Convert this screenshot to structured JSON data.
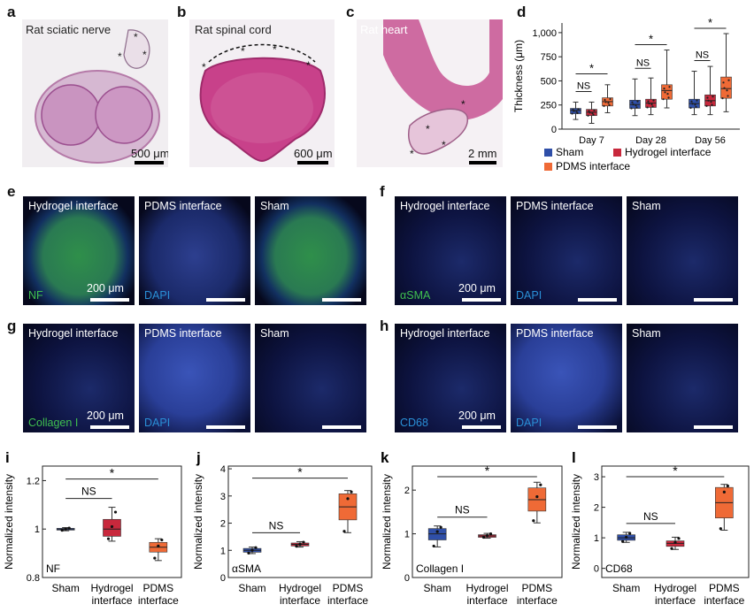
{
  "panels_top": {
    "a": {
      "letter": "a",
      "title": "Rat sciatic nerve",
      "scale": "500 μm"
    },
    "b": {
      "letter": "b",
      "title": "Rat spinal cord",
      "scale": "600 μm"
    },
    "c": {
      "letter": "c",
      "title": "Rat heart",
      "scale": "2 mm"
    }
  },
  "panel_d": {
    "letter": "d",
    "legend": [
      "Sham",
      "Hydrogel interface",
      "PDMS interface"
    ]
  },
  "panels_fluor": {
    "e": {
      "letter": "e",
      "labels": [
        "Hydrogel interface",
        "PDMS interface",
        "Sham"
      ],
      "stain1": "NF",
      "stain2": "DAPI",
      "scale": "200 μm"
    },
    "f": {
      "letter": "f",
      "labels": [
        "Hydrogel interface",
        "PDMS interface",
        "Sham"
      ],
      "stain1": "αSMA",
      "stain2": "DAPI",
      "scale": "200 μm"
    },
    "g": {
      "letter": "g",
      "labels": [
        "Hydrogel interface",
        "PDMS interface",
        "Sham"
      ],
      "stain1": "Collagen I",
      "stain2": "DAPI",
      "scale": "200 μm"
    },
    "h": {
      "letter": "h",
      "labels": [
        "Hydrogel interface",
        "PDMS interface",
        "Sham"
      ],
      "stain1": "CD68",
      "stain2": "DAPI",
      "scale": "200 μm"
    }
  },
  "bottom_letters": {
    "i": "i",
    "j": "j",
    "k": "k",
    "l": "l"
  },
  "colors": {
    "sham": "#2f4fa8",
    "hydrogel": "#c8283c",
    "pdms": "#ef6a36",
    "nf": "#3fbf4f",
    "dapi": "#2a8fd6"
  },
  "chart_data": [
    {
      "id": "d",
      "type": "box",
      "title": "",
      "ylabel": "Thickness (μm)",
      "ylim": [
        0,
        1100
      ],
      "yticks": [
        0,
        250,
        500,
        750,
        1000
      ],
      "ytick_labels": [
        "0",
        "250",
        "500",
        "750",
        "1,000"
      ],
      "categories": [
        "Day 7",
        "Day 28",
        "Day 56"
      ],
      "series": [
        {
          "name": "Sham",
          "boxes": [
            {
              "min": 100,
              "q1": 160,
              "median": 195,
              "q3": 215,
              "max": 280
            },
            {
              "min": 140,
              "q1": 215,
              "median": 255,
              "q3": 300,
              "max": 520
            },
            {
              "min": 150,
              "q1": 220,
              "median": 265,
              "q3": 310,
              "max": 600
            }
          ]
        },
        {
          "name": "Hydrogel interface",
          "boxes": [
            {
              "min": 60,
              "q1": 140,
              "median": 175,
              "q3": 205,
              "max": 280
            },
            {
              "min": 150,
              "q1": 225,
              "median": 270,
              "q3": 310,
              "max": 530
            },
            {
              "min": 150,
              "q1": 240,
              "median": 295,
              "q3": 355,
              "max": 650
            }
          ]
        },
        {
          "name": "PDMS interface",
          "boxes": [
            {
              "min": 170,
              "q1": 240,
              "median": 285,
              "q3": 325,
              "max": 460
            },
            {
              "min": 220,
              "q1": 310,
              "median": 400,
              "q3": 460,
              "max": 820
            },
            {
              "min": 180,
              "q1": 320,
              "median": 420,
              "q3": 540,
              "max": 990
            }
          ]
        }
      ],
      "annotations": {
        "ns": [
          "NS",
          "NS",
          "NS"
        ],
        "star": [
          "*",
          "*",
          "*"
        ]
      }
    },
    {
      "id": "i",
      "type": "box",
      "ylabel": "Normalized intensity",
      "ylim": [
        0.8,
        1.26
      ],
      "yticks": [
        0.8,
        1.0,
        1.2
      ],
      "ytick_labels": [
        "0.8",
        "1",
        "1.2"
      ],
      "categories": [
        "Sham",
        "Hydrogel interface",
        "PDMS interface"
      ],
      "cat_line1": [
        "Sham",
        "Hydrogel",
        "PDMS"
      ],
      "cat_line2": [
        "",
        "interface",
        "interface"
      ],
      "boxes": [
        {
          "min": 0.993,
          "q1": 0.997,
          "median": 1.0,
          "q3": 1.003,
          "max": 1.006,
          "points": [
            0.995,
            1.0,
            1.004
          ]
        },
        {
          "min": 0.95,
          "q1": 0.97,
          "median": 1.0,
          "q3": 1.04,
          "max": 1.09,
          "points": [
            0.96,
            1.01,
            1.07
          ]
        },
        {
          "min": 0.87,
          "q1": 0.905,
          "median": 0.925,
          "q3": 0.945,
          "max": 0.96,
          "points": [
            0.88,
            0.93,
            0.955
          ]
        }
      ],
      "stain": "NF",
      "annotations": {
        "ns": "NS",
        "star": "*"
      }
    },
    {
      "id": "j",
      "type": "box",
      "ylabel": "Normalized intensity",
      "ylim": [
        0,
        4.1
      ],
      "yticks": [
        0,
        1,
        2,
        3,
        4
      ],
      "ytick_labels": [
        "0",
        "1",
        "2",
        "3",
        "4"
      ],
      "categories": [
        "Sham",
        "Hydrogel interface",
        "PDMS interface"
      ],
      "cat_line1": [
        "Sham",
        "Hydrogel",
        "PDMS"
      ],
      "cat_line2": [
        "",
        "interface",
        "interface"
      ],
      "boxes": [
        {
          "min": 0.88,
          "q1": 0.93,
          "median": 1.0,
          "q3": 1.07,
          "max": 1.12,
          "points": [
            0.9,
            1.0,
            1.1
          ]
        },
        {
          "min": 1.12,
          "q1": 1.16,
          "median": 1.22,
          "q3": 1.27,
          "max": 1.32,
          "points": [
            1.15,
            1.22,
            1.3
          ]
        },
        {
          "min": 1.65,
          "q1": 2.12,
          "median": 2.6,
          "q3": 3.08,
          "max": 3.2,
          "points": [
            1.7,
            2.9,
            3.15
          ]
        }
      ],
      "stain": "αSMA",
      "annotations": {
        "ns": "NS",
        "star": "*"
      }
    },
    {
      "id": "k",
      "type": "box",
      "ylabel": "Normalized intensity",
      "ylim": [
        0,
        2.55
      ],
      "yticks": [
        0,
        1,
        2
      ],
      "ytick_labels": [
        "0",
        "1",
        "2"
      ],
      "categories": [
        "Sham",
        "Hydrogel interface",
        "PDMS interface"
      ],
      "cat_line1": [
        "Sham",
        "Hydrogel",
        "PDMS"
      ],
      "cat_line2": [
        "",
        "interface",
        "interface"
      ],
      "boxes": [
        {
          "min": 0.7,
          "q1": 0.86,
          "median": 1.0,
          "q3": 1.12,
          "max": 1.18,
          "points": [
            0.72,
            1.05,
            1.15
          ]
        },
        {
          "min": 0.9,
          "q1": 0.92,
          "median": 0.95,
          "q3": 0.98,
          "max": 1.01,
          "points": [
            0.92,
            0.96,
            1.0
          ]
        },
        {
          "min": 1.25,
          "q1": 1.52,
          "median": 1.78,
          "q3": 2.05,
          "max": 2.18,
          "points": [
            1.3,
            1.85,
            2.12
          ]
        }
      ],
      "stain": "Collagen I",
      "annotations": {
        "ns": "NS",
        "star": "*"
      }
    },
    {
      "id": "l",
      "type": "box",
      "ylabel": "Normalized intensity",
      "ylim": [
        -0.3,
        3.35
      ],
      "yticks": [
        0,
        1,
        2,
        3
      ],
      "ytick_labels": [
        "0",
        "1",
        "2",
        "3"
      ],
      "categories": [
        "Sham",
        "Hydrogel interface",
        "PDMS interface"
      ],
      "cat_line1": [
        "Sham",
        "Hydrogel",
        "PDMS"
      ],
      "cat_line2": [
        "",
        "interface",
        "interface"
      ],
      "boxes": [
        {
          "min": 0.85,
          "q1": 0.92,
          "median": 1.0,
          "q3": 1.1,
          "max": 1.18,
          "points": [
            0.88,
            1.02,
            1.15
          ]
        },
        {
          "min": 0.62,
          "q1": 0.72,
          "median": 0.82,
          "q3": 0.9,
          "max": 1.02,
          "points": [
            0.65,
            0.85,
            0.98
          ]
        },
        {
          "min": 1.25,
          "q1": 1.65,
          "median": 2.15,
          "q3": 2.65,
          "max": 2.75,
          "points": [
            1.3,
            2.5,
            2.7
          ]
        }
      ],
      "stain": "CD68",
      "annotations": {
        "ns": "NS",
        "star": "*"
      }
    }
  ]
}
